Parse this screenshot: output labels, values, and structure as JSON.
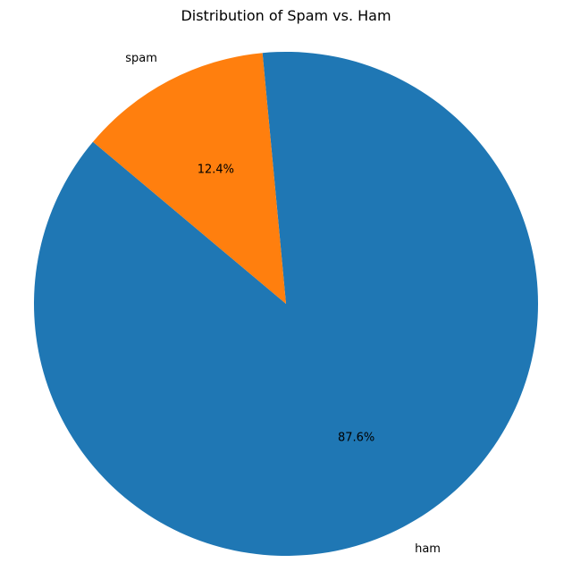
{
  "chart_data": {
    "type": "pie",
    "title": "Distribution of Spam vs. Ham",
    "categories": [
      "ham",
      "spam"
    ],
    "values": [
      87.6,
      12.4
    ],
    "percent_labels": [
      "87.6%",
      "12.4%"
    ],
    "colors": [
      "#1f77b4",
      "#ff7f0e"
    ],
    "start_angle_deg": 140,
    "direction": "counterclockwise",
    "legend": "none"
  }
}
